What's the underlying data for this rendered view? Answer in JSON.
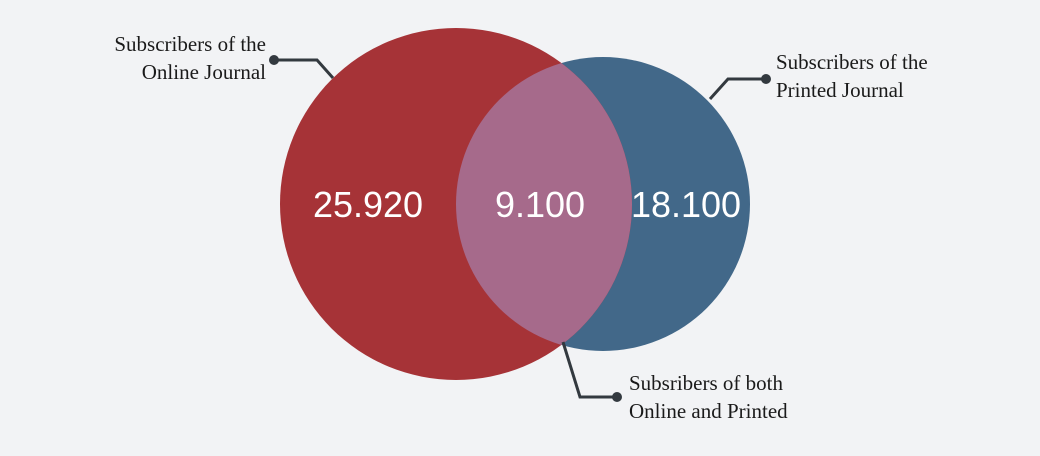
{
  "diagram": {
    "colors": {
      "background": "#f2f3f5",
      "online": "#a63337",
      "printed": "#426889",
      "overlap": "#a66a8b",
      "leader": "#33393f"
    },
    "values": {
      "online_only": "25.920",
      "both": "9.100",
      "printed_only": "18.100"
    },
    "callouts": {
      "online": [
        "Subscribers of the",
        "Online Journal"
      ],
      "printed": [
        "Subscribers of the",
        "Printed Journal"
      ],
      "both": [
        "Subsribers of both",
        "Online and Printed"
      ]
    }
  }
}
